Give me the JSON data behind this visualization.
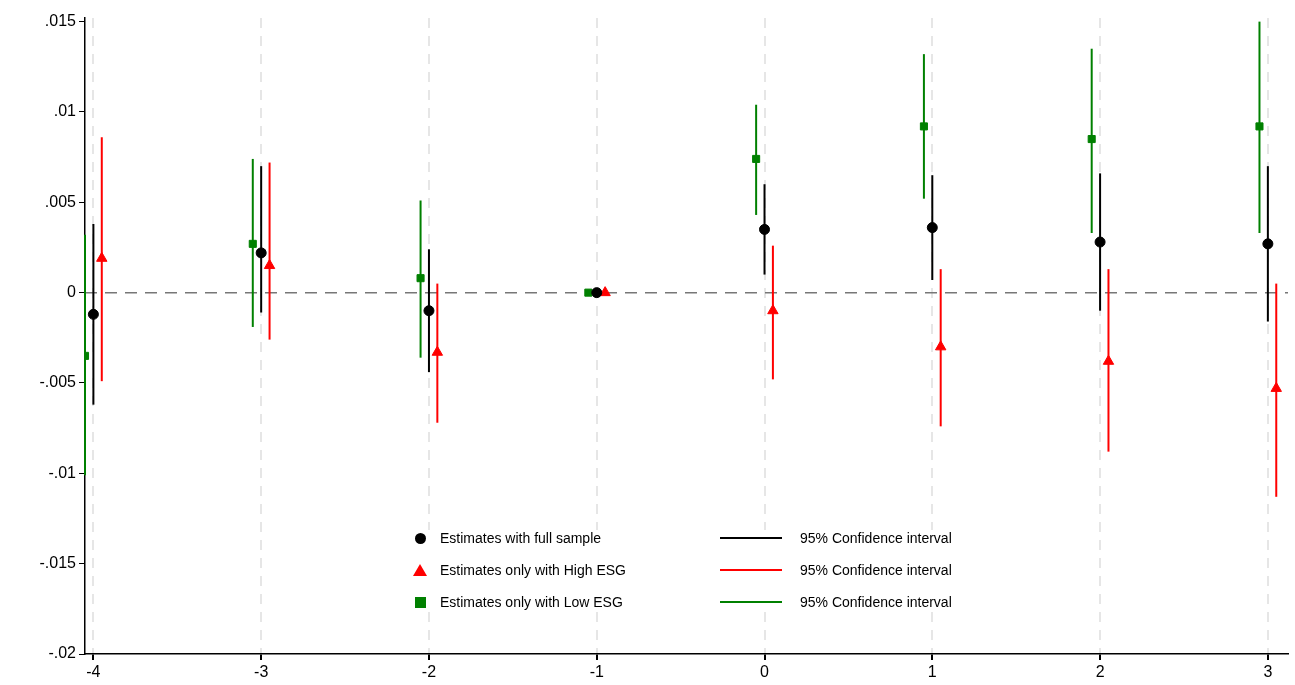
{
  "chart_data": {
    "type": "scatter",
    "xlim": [
      -4.05,
      3.12
    ],
    "xticks": [
      -4,
      -3,
      -2,
      -1,
      0,
      1,
      2,
      3
    ],
    "ylim": [
      -0.02,
      0.0152
    ],
    "yticks": [
      {
        "value": -0.02,
        "label": "-.02"
      },
      {
        "value": -0.015,
        "label": "-.015"
      },
      {
        "value": -0.01,
        "label": "-.01"
      },
      {
        "value": -0.005,
        "label": "-.005"
      },
      {
        "value": 0,
        "label": "0"
      },
      {
        "value": 0.005,
        "label": ".005"
      },
      {
        "value": 0.01,
        "label": ".01"
      },
      {
        "value": 0.015,
        "label": ".015"
      }
    ],
    "grid": "x",
    "legend": "bottom",
    "ref_lines": [
      {
        "axis": "y",
        "value": 0,
        "color": "#777777",
        "line_style": "dashed"
      }
    ],
    "series": [
      {
        "name": "Estimates with full sample",
        "color": "#000000",
        "marker": "circle",
        "x": [
          -4,
          -3,
          -2,
          -1,
          0,
          1,
          2,
          3
        ],
        "values": [
          -0.0012,
          0.0022,
          -0.001,
          0,
          0.0035,
          0.0036,
          0.0028,
          0.0027
        ],
        "errors": [
          [
            -0.0062,
            0.0038
          ],
          [
            -0.0011,
            0.007
          ],
          [
            -0.0044,
            0.0024
          ],
          null,
          [
            0.001,
            0.006
          ],
          [
            0.0007,
            0.0065
          ],
          [
            -0.001,
            0.0066
          ],
          [
            -0.0016,
            0.007
          ]
        ]
      },
      {
        "name": "Estimates only with High ESG",
        "color": "#ff0000",
        "marker": "triangle",
        "x": [
          -3.95,
          -2.95,
          -1.95,
          -0.95,
          0.05,
          1.05,
          2.05,
          3.05
        ],
        "values": [
          0.0019,
          0.0015,
          -0.0033,
          0,
          -0.001,
          -0.003,
          -0.0038,
          -0.0053
        ],
        "errors": [
          [
            -0.0049,
            0.0086
          ],
          [
            -0.0026,
            0.0072
          ],
          [
            -0.0072,
            0.0005
          ],
          null,
          [
            -0.0048,
            0.0026
          ],
          [
            -0.0074,
            0.0013
          ],
          [
            -0.0088,
            0.0013
          ],
          [
            -0.0113,
            0.0005
          ]
        ]
      },
      {
        "name": "Estimates only with Low ESG",
        "color": "#008000",
        "marker": "square",
        "x": [
          -4.05,
          -3.05,
          -2.05,
          -1.05,
          -0.05,
          0.95,
          1.95,
          2.95
        ],
        "values": [
          -0.0035,
          0.0027,
          0.0008,
          0,
          0.0074,
          0.0092,
          0.0085,
          0.0092
        ],
        "errors": [
          [
            -0.0101,
            0.0032
          ],
          [
            -0.0019,
            0.0074
          ],
          [
            -0.0036,
            0.0051
          ],
          null,
          [
            0.0043,
            0.0104
          ],
          [
            0.0052,
            0.0132
          ],
          [
            0.0033,
            0.0135
          ],
          [
            0.0033,
            0.015
          ]
        ]
      }
    ],
    "annotations": [
      "95% Confidence interval",
      "95% Confidence interval",
      "95% Confidence interval"
    ]
  }
}
